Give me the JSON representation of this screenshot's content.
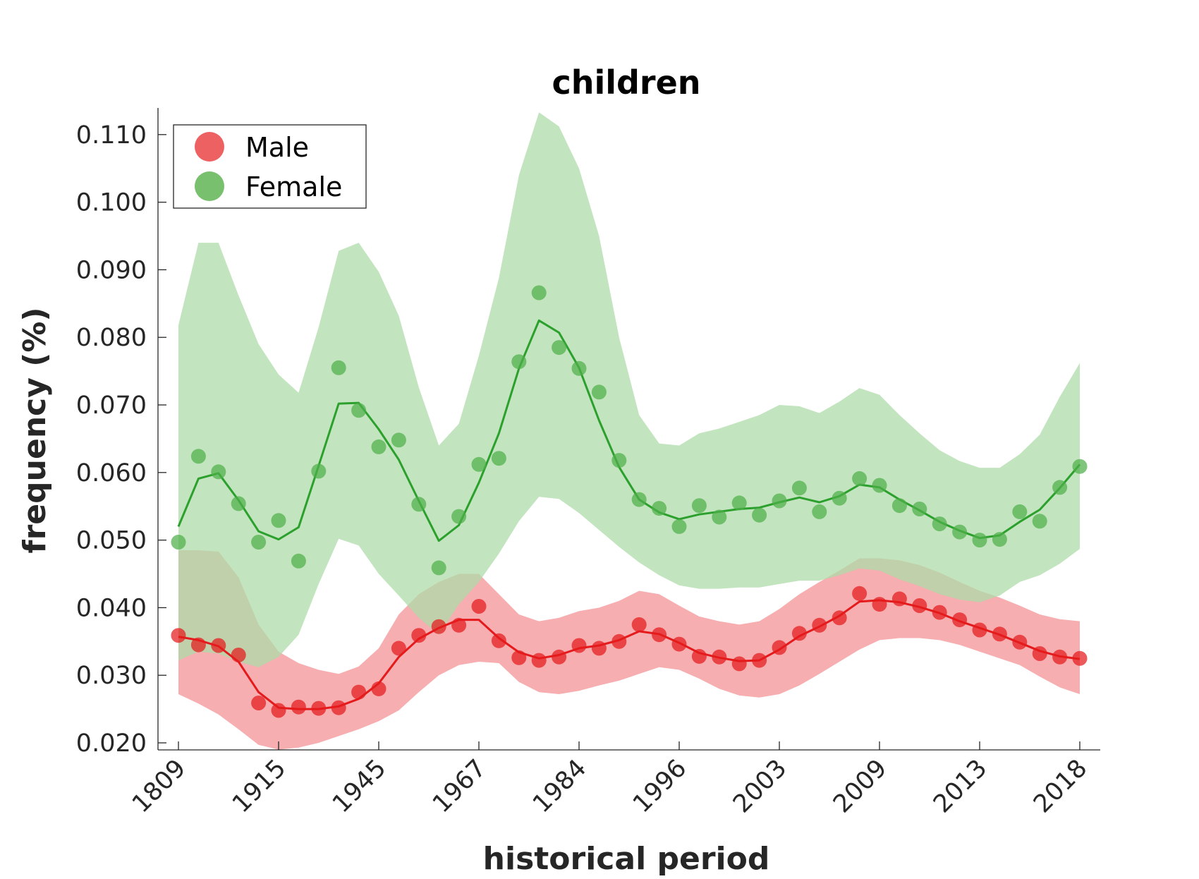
{
  "chart_data": {
    "type": "line",
    "title": "children",
    "xlabel": "historical period",
    "ylabel": "frequency (%)",
    "ylim": [
      0.019,
      0.114
    ],
    "yticks": [
      "0.020",
      "0.030",
      "0.040",
      "0.050",
      "0.060",
      "0.070",
      "0.080",
      "0.090",
      "0.100",
      "0.110"
    ],
    "x_tick_labels": [
      "1809",
      "1915",
      "1945",
      "1967",
      "1984",
      "1996",
      "2003",
      "2009",
      "2013",
      "2018"
    ],
    "x_tick_positions": [
      0,
      5,
      10,
      15,
      20,
      25,
      30,
      35,
      40,
      45
    ],
    "x_count": 46,
    "legend_position": "top-left",
    "grid": false,
    "series": [
      {
        "name": "Male",
        "color": "#e41a1c",
        "marker_color": "#e41a1c",
        "band_color": "#f4a0a2",
        "points": [
          0.0359,
          0.0345,
          0.0344,
          0.033,
          0.0259,
          0.0248,
          0.0253,
          0.0251,
          0.0252,
          0.0275,
          0.028,
          0.034,
          0.0359,
          0.0372,
          0.0374,
          0.0402,
          0.0351,
          0.0326,
          0.0322,
          0.0327,
          0.0344,
          0.034,
          0.035,
          0.0375,
          0.036,
          0.0346,
          0.0328,
          0.0327,
          0.0317,
          0.0322,
          0.0341,
          0.0362,
          0.0374,
          0.0385,
          0.0421,
          0.0405,
          0.0413,
          0.0403,
          0.0393,
          0.0382,
          0.0367,
          0.0361,
          0.0349,
          0.0332,
          0.0327,
          0.0325
        ],
        "smoothed": [
          0.0357,
          0.0352,
          0.0343,
          0.032,
          0.0275,
          0.0252,
          0.025,
          0.025,
          0.0254,
          0.0265,
          0.0288,
          0.0327,
          0.0354,
          0.037,
          0.0382,
          0.0382,
          0.0355,
          0.0334,
          0.0325,
          0.033,
          0.034,
          0.0344,
          0.0352,
          0.0365,
          0.0361,
          0.0348,
          0.0333,
          0.0326,
          0.0321,
          0.0322,
          0.0338,
          0.0358,
          0.0372,
          0.0388,
          0.0409,
          0.0411,
          0.0408,
          0.0401,
          0.0392,
          0.038,
          0.037,
          0.036,
          0.0348,
          0.0336,
          0.0328,
          0.0324
        ],
        "band_upper": [
          0.0485,
          0.0485,
          0.0483,
          0.0445,
          0.0375,
          0.0335,
          0.0318,
          0.0308,
          0.0302,
          0.0313,
          0.034,
          0.039,
          0.042,
          0.0438,
          0.045,
          0.045,
          0.042,
          0.039,
          0.038,
          0.0385,
          0.0395,
          0.04,
          0.041,
          0.0425,
          0.042,
          0.0403,
          0.0387,
          0.038,
          0.0375,
          0.038,
          0.0398,
          0.042,
          0.0438,
          0.0455,
          0.0473,
          0.0473,
          0.047,
          0.0463,
          0.0452,
          0.0438,
          0.0425,
          0.0415,
          0.0403,
          0.039,
          0.0383,
          0.038
        ],
        "band_lower": [
          0.0272,
          0.0258,
          0.0242,
          0.022,
          0.0197,
          0.019,
          0.0193,
          0.02,
          0.021,
          0.022,
          0.0232,
          0.0248,
          0.0275,
          0.03,
          0.0315,
          0.032,
          0.0318,
          0.029,
          0.0275,
          0.0272,
          0.0277,
          0.0285,
          0.0292,
          0.0302,
          0.0312,
          0.0308,
          0.0295,
          0.028,
          0.027,
          0.0267,
          0.0272,
          0.0285,
          0.0302,
          0.032,
          0.0338,
          0.0352,
          0.0355,
          0.0355,
          0.0352,
          0.0345,
          0.0335,
          0.0325,
          0.0315,
          0.0298,
          0.0282,
          0.0272
        ]
      },
      {
        "name": "Female",
        "color": "#2ca02c",
        "marker_color": "#4daf4a",
        "band_color": "#aedba8",
        "points": [
          0.0497,
          0.0624,
          0.0601,
          0.0554,
          0.0497,
          0.0529,
          0.0469,
          0.0602,
          0.0755,
          0.0692,
          0.0638,
          0.0648,
          0.0553,
          0.0459,
          0.0535,
          0.0612,
          0.0621,
          0.0764,
          0.0866,
          0.0785,
          0.0754,
          0.0719,
          0.0618,
          0.056,
          0.0547,
          0.052,
          0.0551,
          0.0534,
          0.0555,
          0.0537,
          0.0558,
          0.0577,
          0.0542,
          0.0562,
          0.0591,
          0.0581,
          0.0551,
          0.0546,
          0.0524,
          0.0512,
          0.05,
          0.0501,
          0.0542,
          0.0528,
          0.0578,
          0.0609
        ],
        "smoothed": [
          0.052,
          0.0591,
          0.0599,
          0.0559,
          0.0513,
          0.0501,
          0.0519,
          0.061,
          0.0702,
          0.0703,
          0.0664,
          0.0619,
          0.0558,
          0.0499,
          0.0522,
          0.0585,
          0.0658,
          0.0754,
          0.0825,
          0.0807,
          0.0755,
          0.0677,
          0.0608,
          0.056,
          0.0541,
          0.0531,
          0.0538,
          0.0542,
          0.0546,
          0.0548,
          0.0556,
          0.0563,
          0.0556,
          0.0565,
          0.0582,
          0.0578,
          0.056,
          0.0544,
          0.0527,
          0.0514,
          0.0503,
          0.0507,
          0.0527,
          0.0545,
          0.0577,
          0.0612
        ],
        "band_upper": [
          0.0818,
          0.094,
          0.094,
          0.0862,
          0.079,
          0.0745,
          0.0718,
          0.0815,
          0.0928,
          0.094,
          0.0897,
          0.0832,
          0.0726,
          0.064,
          0.0672,
          0.0773,
          0.0888,
          0.104,
          0.1133,
          0.1112,
          0.105,
          0.095,
          0.08,
          0.0685,
          0.0643,
          0.064,
          0.0658,
          0.0665,
          0.0675,
          0.0685,
          0.07,
          0.0698,
          0.0688,
          0.0705,
          0.0725,
          0.0715,
          0.0685,
          0.0658,
          0.0633,
          0.0617,
          0.0607,
          0.0607,
          0.0627,
          0.0656,
          0.0712,
          0.0762
        ],
        "band_lower": [
          0.0322,
          0.0335,
          0.0332,
          0.032,
          0.0312,
          0.0327,
          0.036,
          0.0435,
          0.0502,
          0.0492,
          0.045,
          0.0418,
          0.0385,
          0.036,
          0.0405,
          0.0438,
          0.048,
          0.0528,
          0.0564,
          0.0561,
          0.054,
          0.0515,
          0.049,
          0.0467,
          0.0448,
          0.0433,
          0.0428,
          0.0428,
          0.043,
          0.043,
          0.0435,
          0.044,
          0.044,
          0.0448,
          0.0458,
          0.0455,
          0.0442,
          0.0432,
          0.042,
          0.0412,
          0.0408,
          0.0418,
          0.0438,
          0.0448,
          0.0465,
          0.0487
        ]
      }
    ]
  }
}
